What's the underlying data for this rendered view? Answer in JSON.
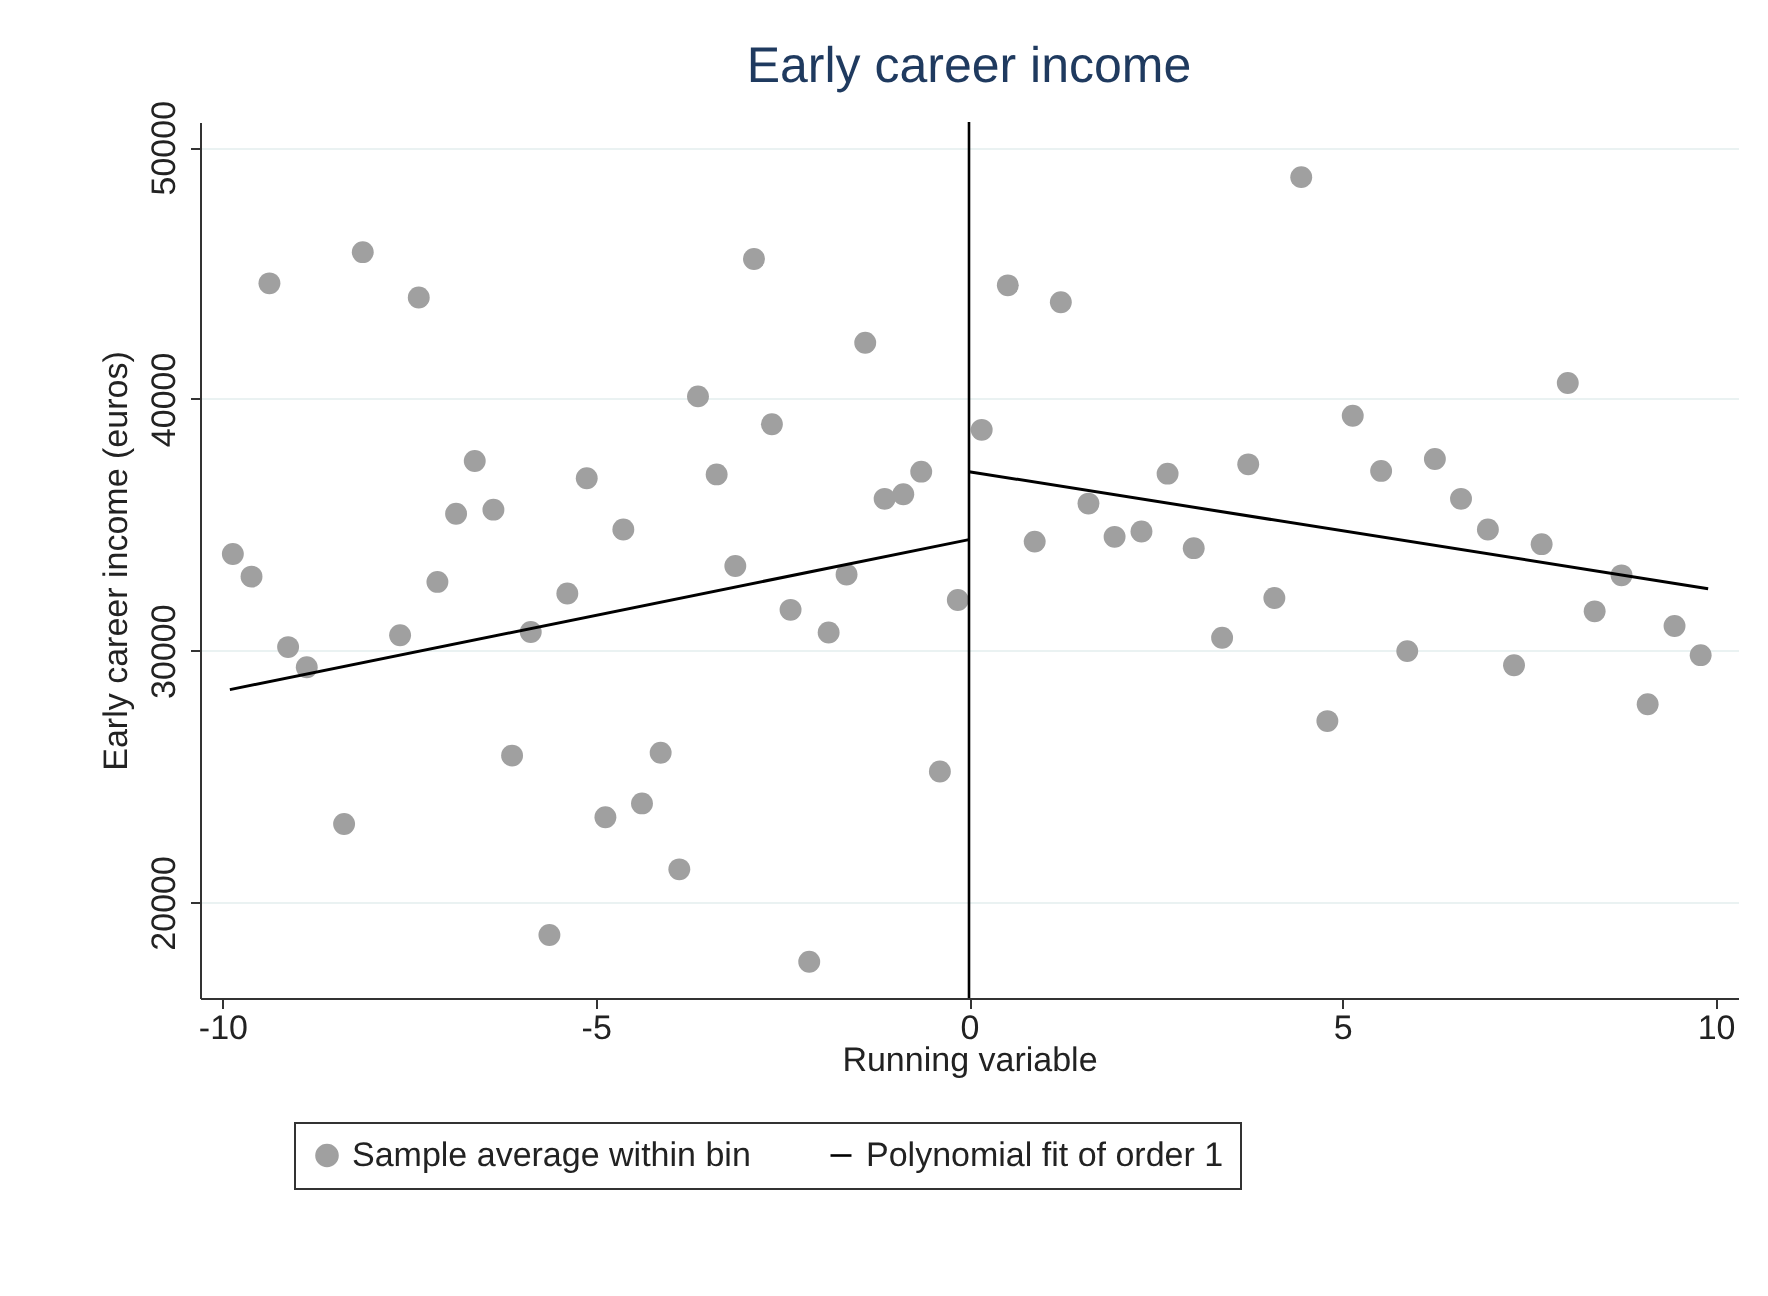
{
  "chart_data": {
    "type": "scatter",
    "title": "Early career income",
    "xlabel": "Running variable",
    "ylabel": "Early career income (euros)",
    "xlim": [
      -10.3,
      10.3
    ],
    "xticks": [
      -10,
      -5,
      0,
      5,
      10
    ],
    "ylim": [
      16200,
      51000
    ],
    "yticks": [
      20000,
      30000,
      40000,
      50000
    ],
    "grid": "y",
    "legend": "bottom",
    "ref_lines": [
      {
        "axis": "x",
        "value": 0,
        "color": "#000000"
      }
    ],
    "series": [
      {
        "name": "Sample average within bin",
        "color": "#a0a0a0",
        "marker": "circle",
        "x": [
          -9.86,
          -9.61,
          -9.37,
          -9.12,
          -8.87,
          -8.37,
          -8.12,
          -7.62,
          -7.37,
          -7.12,
          -6.87,
          -6.62,
          -6.37,
          -6.12,
          -5.87,
          -5.62,
          -5.38,
          -5.12,
          -4.87,
          -4.63,
          -4.38,
          -4.13,
          -3.88,
          -3.63,
          -3.38,
          -3.13,
          -2.88,
          -2.64,
          -2.39,
          -2.14,
          -1.88,
          -1.64,
          -1.39,
          -1.13,
          -0.88,
          -0.64,
          -0.39,
          -0.15,
          0.17,
          0.52,
          0.88,
          1.23,
          1.6,
          1.95,
          2.31,
          2.66,
          3.01,
          3.39,
          3.74,
          4.09,
          4.45,
          4.8,
          5.14,
          5.52,
          5.87,
          6.24,
          6.59,
          6.95,
          7.3,
          7.67,
          8.02,
          8.38,
          8.74,
          9.09,
          9.45,
          9.8
        ],
        "values": [
          33840,
          32940,
          44590,
          30140,
          29340,
          23110,
          45830,
          30610,
          44030,
          32730,
          35440,
          37530,
          35600,
          25830,
          30740,
          18700,
          32270,
          36850,
          23380,
          34810,
          23930,
          25940,
          21310,
          40100,
          37000,
          33360,
          45560,
          38990,
          31620,
          17640,
          30720,
          33020,
          42230,
          36030,
          36210,
          37110,
          25200,
          32010,
          38770,
          44510,
          34330,
          43840,
          35840,
          34520,
          34730,
          37030,
          34070,
          30510,
          37400,
          32090,
          48810,
          27200,
          39330,
          37140,
          29980,
          37610,
          36030,
          34810,
          29420,
          34230,
          40630,
          31560,
          32990,
          27870,
          30980,
          29820
        ]
      },
      {
        "name": "Polynomial fit of order 1",
        "type": "line",
        "color": "#000000",
        "line_style": "solid",
        "x": [
          -9.9,
          0
        ],
        "values": [
          28450,
          34410
        ]
      },
      {
        "type": "line",
        "color": "#000000",
        "line_style": "solid",
        "x": [
          0,
          9.9
        ],
        "values": [
          37110,
          32460
        ]
      }
    ]
  }
}
